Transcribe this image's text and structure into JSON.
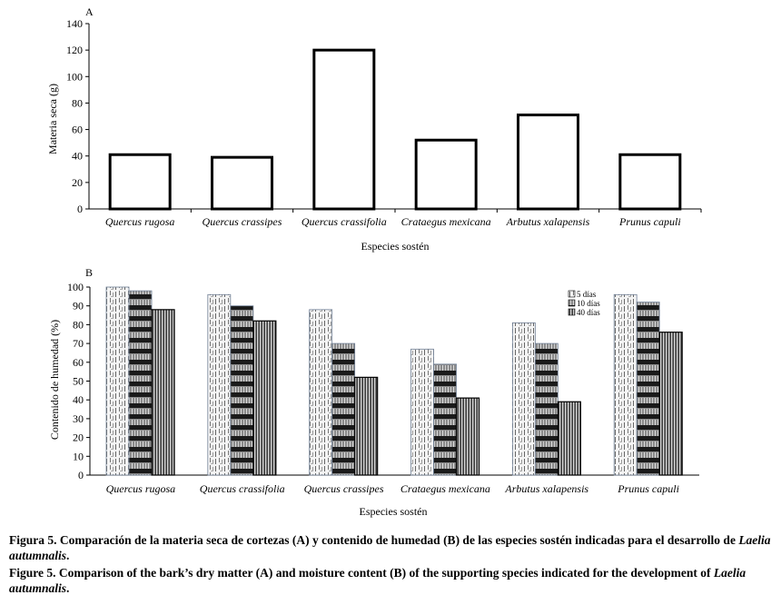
{
  "chart_data": [
    {
      "panel": "A",
      "type": "bar",
      "title": "",
      "xlabel": "Especies sostén",
      "ylabel": "Materia seca (g)",
      "ylim": [
        0,
        140
      ],
      "yticks": [
        0,
        20,
        40,
        60,
        80,
        100,
        120,
        140
      ],
      "categories": [
        "Quercus rugosa",
        "Quercus crassipes",
        "Quercus crassifolia",
        "Crataegus mexicana",
        "Arbutus xalapensis",
        "Prunus capuli"
      ],
      "values": [
        41,
        39,
        120,
        52,
        71,
        41
      ],
      "grid": false
    },
    {
      "panel": "B",
      "type": "bar",
      "title": "",
      "xlabel": "Especies sostén",
      "ylabel": "Contenido de humedad (%)",
      "ylim": [
        0,
        100
      ],
      "yticks": [
        0,
        10,
        20,
        30,
        40,
        50,
        60,
        70,
        80,
        90,
        100
      ],
      "categories": [
        "Quercus rugosa",
        "Quercus crassifolia",
        "Quercus crassipes",
        "Crataegus mexicana",
        "Arbutus xalapensis",
        "Prunus capuli"
      ],
      "series": [
        {
          "name": "5 días",
          "values": [
            100,
            96,
            88,
            67,
            81,
            96
          ]
        },
        {
          "name": "10 días",
          "values": [
            98,
            90,
            70,
            59,
            70,
            92
          ]
        },
        {
          "name": "40 días",
          "values": [
            88,
            82,
            52,
            41,
            39,
            76
          ]
        }
      ],
      "legend_position": "top-right",
      "grid": false
    }
  ],
  "captions": {
    "es": {
      "label": "Figura 5.",
      "text": "Comparación de la materia seca de cortezas (A) y contenido de humedad (B) de las especies sostén indicadas para el desarrollo de",
      "species": "Laelia autumnalis",
      "end": "."
    },
    "en": {
      "label": "Figure 5.",
      "text": "Comparison of the bark’s dry matter (A) and moisture content (B) of the supporting species indicated for the development of",
      "species": "Laelia autumnalis",
      "end": "."
    }
  }
}
